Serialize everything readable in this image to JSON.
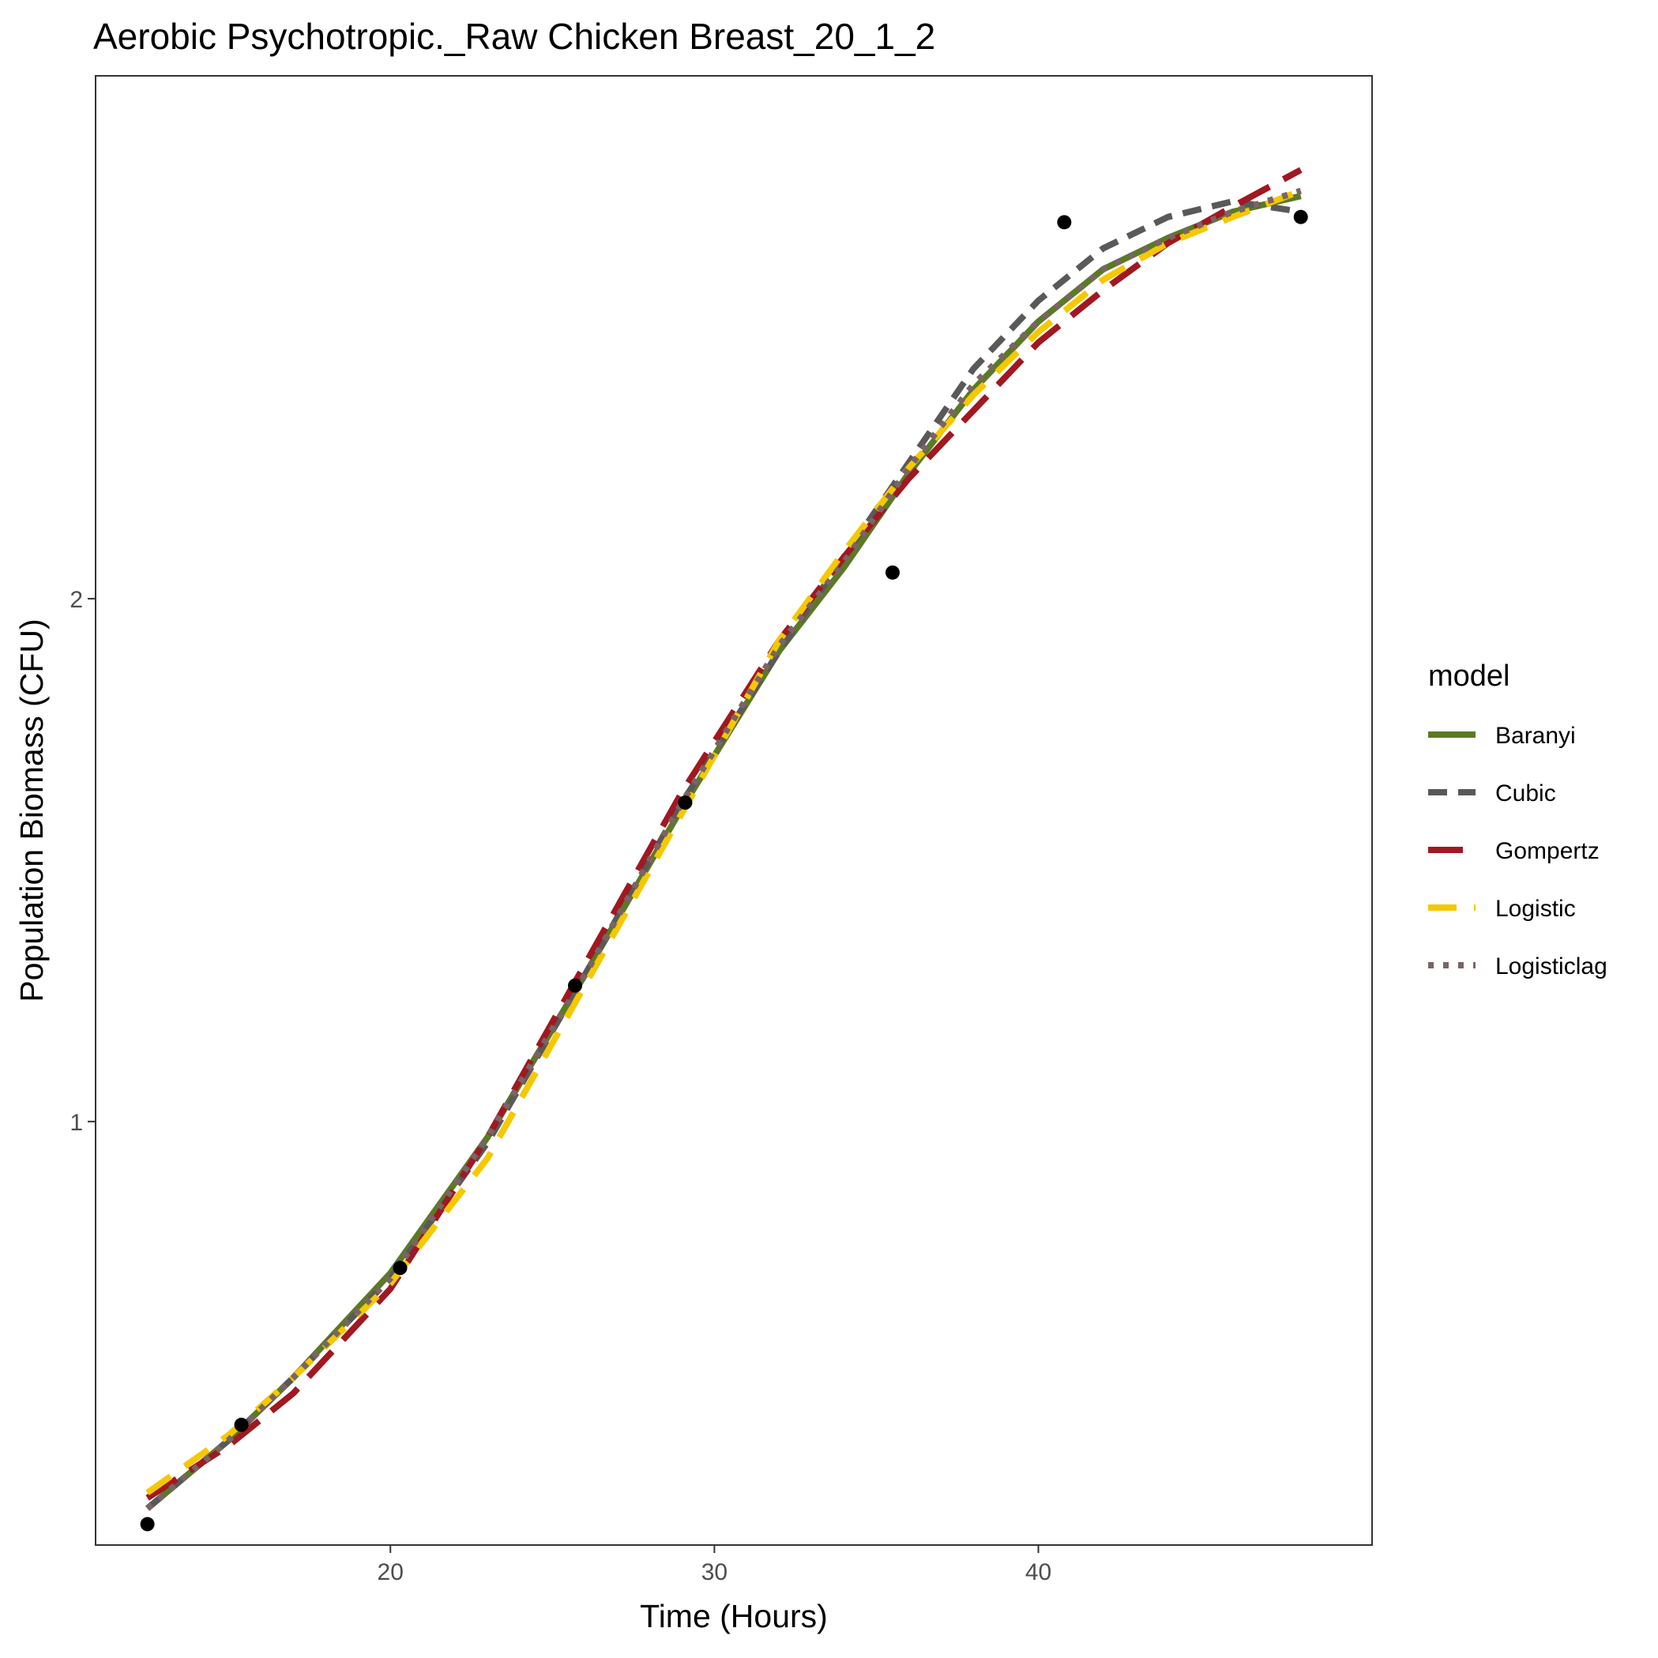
{
  "chart_data": {
    "type": "line",
    "title": "Aerobic Psychotropic._Raw Chicken Breast_20_1_2",
    "xlabel": "Time (Hours)",
    "ylabel": "Population Biomass (CFU)",
    "xlim": [
      10.9,
      50.3
    ],
    "ylim": [
      0.19,
      3.0
    ],
    "x_ticks": [
      20,
      30,
      40
    ],
    "y_ticks": [
      1,
      2
    ],
    "grid": false,
    "legend": {
      "title": "model",
      "position": "right"
    },
    "points": {
      "x": [
        12.5,
        15.4,
        20.3,
        25.7,
        29.1,
        35.5,
        40.8,
        48.1
      ],
      "y": [
        0.23,
        0.42,
        0.72,
        1.26,
        1.61,
        2.05,
        2.72,
        2.73
      ]
    },
    "series": [
      {
        "name": "Baranyi",
        "color": "#5a7a26",
        "dash": "solid",
        "x": [
          12.5,
          15,
          17,
          20,
          23,
          26,
          29,
          32,
          34,
          36,
          38,
          40,
          42,
          44,
          46,
          48.1
        ],
        "y": [
          0.26,
          0.39,
          0.51,
          0.71,
          0.97,
          1.28,
          1.6,
          1.9,
          2.06,
          2.24,
          2.4,
          2.53,
          2.63,
          2.69,
          2.74,
          2.77
        ]
      },
      {
        "name": "Cubic",
        "color": "#595959",
        "dash": "24,14",
        "x": [
          12.5,
          15,
          17,
          20,
          23,
          26,
          29,
          32,
          34,
          36,
          38,
          40,
          42,
          44,
          46,
          48.1
        ],
        "y": [
          0.26,
          0.39,
          0.51,
          0.7,
          0.96,
          1.28,
          1.61,
          1.9,
          2.08,
          2.26,
          2.44,
          2.57,
          2.67,
          2.73,
          2.76,
          2.74
        ]
      },
      {
        "name": "Gompertz",
        "color": "#a01822",
        "dash": "44,20",
        "x": [
          12.5,
          15,
          17,
          20,
          23,
          26,
          29,
          32,
          34,
          36,
          38,
          40,
          42,
          44,
          46,
          48.1
        ],
        "y": [
          0.28,
          0.38,
          0.48,
          0.68,
          0.97,
          1.3,
          1.63,
          1.92,
          2.08,
          2.23,
          2.36,
          2.49,
          2.59,
          2.68,
          2.75,
          2.82
        ]
      },
      {
        "name": "Logistic",
        "color": "#f5c800",
        "dash": "36,22",
        "x": [
          12.5,
          15,
          17,
          20,
          23,
          26,
          29,
          32,
          34,
          36,
          38,
          40,
          42,
          44,
          46,
          48.1
        ],
        "y": [
          0.29,
          0.4,
          0.51,
          0.69,
          0.93,
          1.26,
          1.59,
          1.92,
          2.09,
          2.25,
          2.39,
          2.51,
          2.61,
          2.68,
          2.73,
          2.78
        ]
      },
      {
        "name": "Logisticlag",
        "color": "#7a6464",
        "dash": "7,12",
        "x": [
          12.5,
          15,
          17,
          20,
          23,
          26,
          29,
          32,
          34,
          36,
          38,
          40,
          42,
          44,
          46,
          48.1
        ],
        "y": [
          0.26,
          0.39,
          0.51,
          0.7,
          0.97,
          1.28,
          1.61,
          1.91,
          2.07,
          2.25,
          2.41,
          2.53,
          2.63,
          2.69,
          2.74,
          2.78
        ]
      }
    ]
  }
}
